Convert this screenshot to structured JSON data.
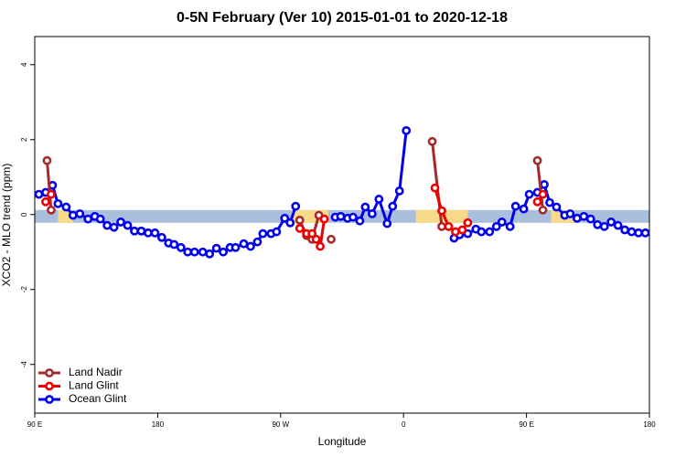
{
  "chart_data": {
    "type": "line",
    "title": "0-5N February (Ver 10)   2015-01-01 to 2020-12-18",
    "x_label": "Longitude",
    "y_label": "XCO2 - MLO trend (ppm)",
    "xlim": [
      90,
      540
    ],
    "ylim": [
      -5.3,
      4.75
    ],
    "xticks": [
      {
        "value": 90,
        "label": "90 E"
      },
      {
        "value": 180,
        "label": "180"
      },
      {
        "value": 270,
        "label": "90 W"
      },
      {
        "value": 360,
        "label": "0"
      },
      {
        "value": 450,
        "label": "90 E"
      },
      {
        "value": 540,
        "label": "180"
      }
    ],
    "yticks": [
      -4,
      -2,
      0,
      2,
      4
    ],
    "band": [
      -0.22,
      0.12
    ],
    "band_color": "#a9bfdb",
    "highlights": [
      [
        107,
        118
      ],
      [
        278,
        305
      ],
      [
        369,
        407
      ],
      [
        468,
        485
      ]
    ],
    "highlight_color": "#f7d98a",
    "legend": "lower left",
    "series": [
      {
        "name": "Ocean Glint",
        "color": "#0000ee",
        "x": [
          93,
          98,
          103,
          107,
          113,
          118,
          123,
          129,
          134,
          138,
          143,
          148,
          153,
          158,
          163,
          168,
          173,
          178,
          183,
          188,
          192,
          197,
          202,
          207,
          213,
          218,
          223,
          228,
          233,
          237,
          243,
          248,
          253,
          257,
          263,
          267,
          273,
          277,
          281,
          295,
          310,
          314,
          319,
          323,
          328,
          332,
          337,
          342,
          348,
          352,
          357,
          362,
          380,
          397,
          401,
          407,
          413,
          417,
          423,
          428,
          432,
          438,
          442,
          448,
          452,
          458,
          463,
          467,
          472,
          478,
          482,
          487,
          492,
          497,
          502,
          507,
          512,
          517,
          522,
          527,
          532,
          537
        ],
        "values": [
          0.54,
          0.59,
          0.78,
          0.29,
          0.2,
          -0.02,
          0.02,
          -0.12,
          -0.05,
          -0.12,
          -0.29,
          -0.34,
          -0.2,
          -0.29,
          -0.44,
          -0.44,
          -0.49,
          -0.49,
          -0.61,
          -0.76,
          -0.8,
          -0.88,
          -1.0,
          -1.0,
          -1.0,
          -1.05,
          -0.9,
          -1.0,
          -0.88,
          -0.88,
          -0.78,
          -0.85,
          -0.73,
          -0.51,
          -0.51,
          -0.46,
          -0.1,
          -0.22,
          0.22,
          null,
          -0.07,
          -0.05,
          -0.1,
          -0.07,
          -0.17,
          0.2,
          0.02,
          0.41,
          -0.24,
          0.22,
          0.63,
          2.24,
          null,
          -0.63,
          -0.54,
          -0.51,
          -0.39,
          -0.46,
          -0.46,
          -0.32,
          -0.2,
          -0.32,
          0.22,
          0.15,
          0.54,
          0.59,
          0.8,
          0.32,
          0.2,
          -0.02,
          0.02,
          -0.1,
          -0.05,
          -0.12,
          -0.27,
          -0.32,
          -0.2,
          -0.29,
          -0.41,
          -0.46,
          -0.49,
          -0.49
        ]
      },
      {
        "name": "Land Nadir",
        "color": "#a52a2a",
        "x": [
          99,
          102,
          190,
          284,
          289,
          293,
          298,
          302,
          307,
          370,
          381,
          388,
          420,
          458,
          462
        ],
        "values": [
          1.44,
          0.12,
          null,
          -0.15,
          -0.56,
          -0.66,
          -0.02,
          null,
          -0.66,
          null,
          1.95,
          -0.32,
          null,
          1.44,
          0.12
        ]
      },
      {
        "name": "Land Glint",
        "color": "#ee0000",
        "x": [
          98,
          102,
          190,
          284,
          289,
          293,
          296,
          299,
          302,
          340,
          383,
          388,
          393,
          398,
          403,
          407,
          430,
          458,
          462
        ],
        "values": [
          0.34,
          0.54,
          null,
          -0.37,
          -0.51,
          -0.51,
          -0.66,
          -0.85,
          -0.12,
          null,
          0.71,
          0.1,
          -0.32,
          -0.46,
          -0.41,
          -0.22,
          null,
          0.34,
          0.54
        ]
      }
    ]
  }
}
